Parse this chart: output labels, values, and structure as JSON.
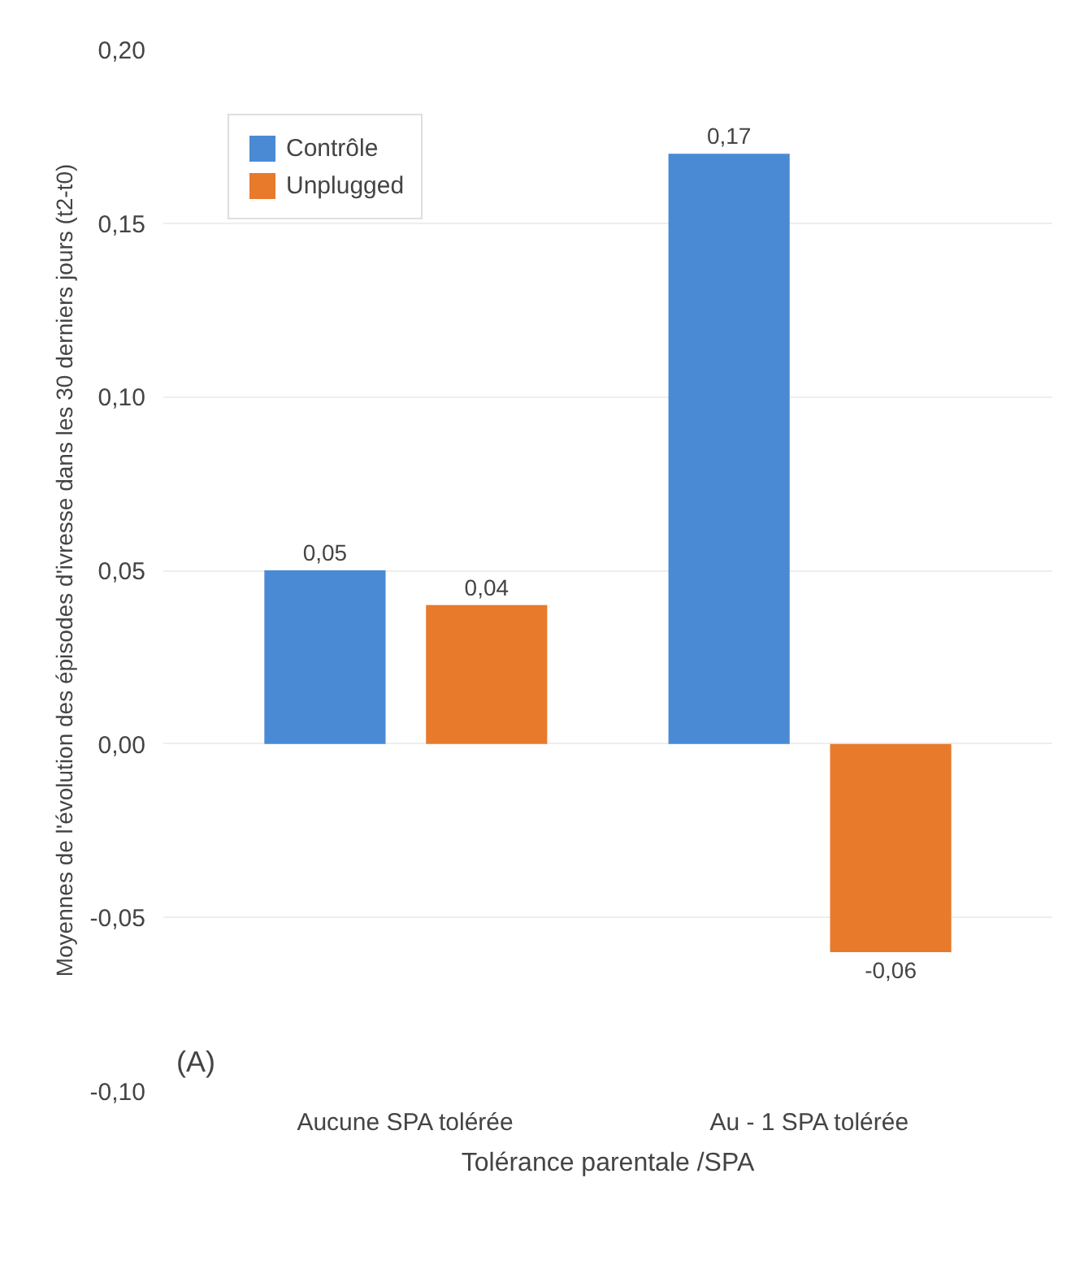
{
  "chart_data": {
    "type": "bar",
    "xlabel": "Tolérance parentale /SPA",
    "ylabel": "Moyennes de l'évolution des épisodes d'ivresse dans les 30 derniers jours (t2-t0)",
    "categories": [
      "Aucune SPA tolérée",
      "Au - 1 SPA tolérée"
    ],
    "series": [
      {
        "name": "Contrôle",
        "color": "#4a8ad4",
        "values": [
          0.05,
          0.17
        ],
        "value_labels": [
          "0,05",
          "0,17"
        ]
      },
      {
        "name": "Unplugged",
        "color": "#e87a2c",
        "values": [
          0.04,
          -0.06
        ],
        "value_labels": [
          "0,04",
          "-0,06"
        ]
      }
    ],
    "ylim": [
      -0.1,
      0.2
    ],
    "yticks": [
      {
        "value": -0.1,
        "label": "-0,10"
      },
      {
        "value": -0.05,
        "label": "-0,05"
      },
      {
        "value": 0,
        "label": "0,00"
      },
      {
        "value": 0.05,
        "label": "0,05"
      },
      {
        "value": 0.1,
        "label": "0,10"
      },
      {
        "value": 0.15,
        "label": "0,15"
      },
      {
        "value": 0.2,
        "label": "0,20"
      }
    ],
    "grid": "y",
    "legend": "top left",
    "annotations": [
      "(A)"
    ]
  }
}
